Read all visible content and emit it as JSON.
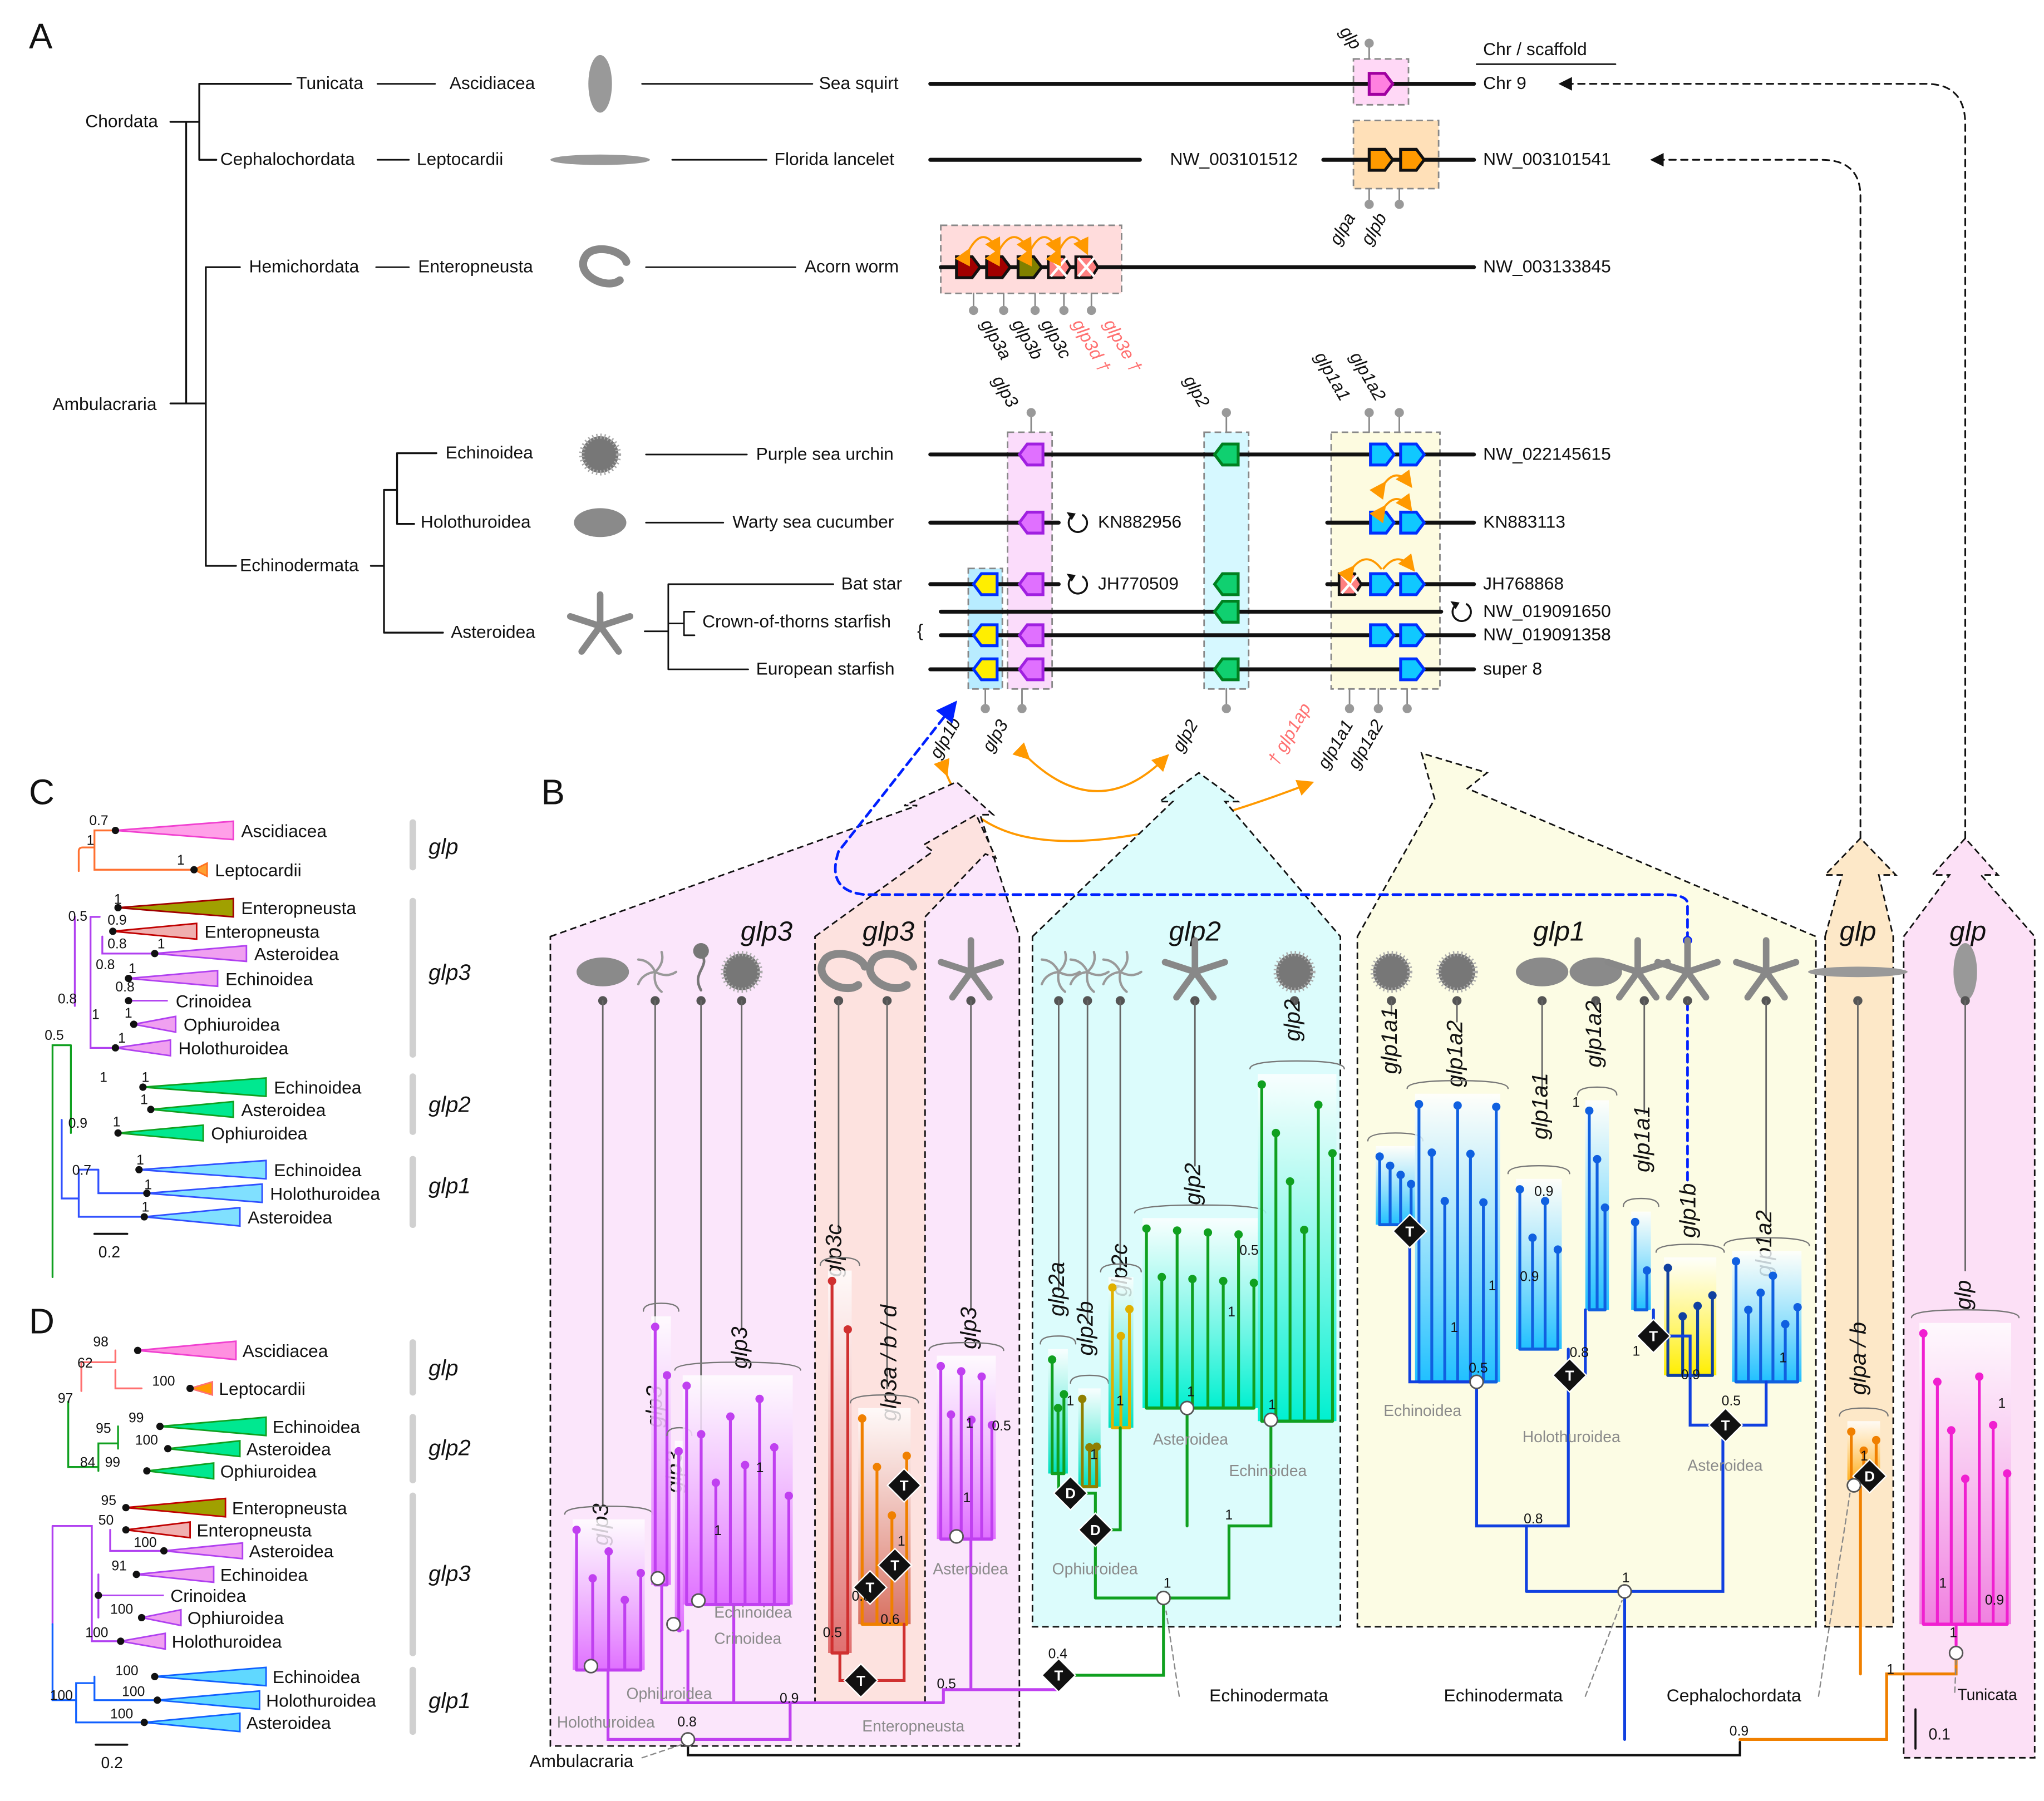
{
  "panel_labels": {
    "a": "A",
    "b": "B",
    "c": "C",
    "d": "D"
  },
  "colors": {
    "glp": "#ff60e0",
    "glp_lancelet": "#ff8c00",
    "glp3": "#c040f0",
    "glp3_worm": "#d02020",
    "glp2": "#00c060",
    "glp1": "#00b0ff",
    "glp1b": "#ffee00",
    "duplication_arrow": "#ff9900",
    "translocation": "#0020ff"
  },
  "panel_a": {
    "header": "Chr / scaffold",
    "taxa": {
      "chordata": "Chordata",
      "tunicata": "Tunicata",
      "ascidiacea": "Ascidiacea",
      "cephalochordata": "Cephalochordata",
      "leptocardii": "Leptocardii",
      "ambulacraria": "Ambulacraria",
      "hemichordata": "Hemichordata",
      "enteropneusta": "Enteropneusta",
      "echinodermata": "Echinodermata",
      "echinoidea": "Echinoidea",
      "holothuroidea": "Holothuroidea",
      "asteroidea": "Asteroidea"
    },
    "species": {
      "sea_squirt": "Sea squirt",
      "florida_lancelet": "Florida lancelet",
      "acorn_worm": "Acorn worm",
      "purple_sea_urchin": "Purple sea urchin",
      "warty_sea_cucumber": "Warty sea cucumber",
      "bat_star": "Bat star",
      "crown_of_thorns": "Crown-of-thorns starfish",
      "european_starfish": "European starfish"
    },
    "scaffolds": {
      "chr9": "Chr 9",
      "nw_003101512": "NW_003101512",
      "nw_003101541": "NW_003101541",
      "nw_003133845": "NW_003133845",
      "nw_022145615": "NW_022145615",
      "kn882956": "KN882956",
      "kn883113": "KN883113",
      "jh770509": "JH770509",
      "jh768868": "JH768868",
      "nw_019091650": "NW_019091650",
      "nw_019091358": "NW_019091358",
      "super8": "super 8"
    },
    "genes": {
      "glp": "glp",
      "glpa": "glpa",
      "glpb": "glpb",
      "glp3a": "glp3a",
      "glp3b": "glp3b",
      "glp3c": "glp3c",
      "glp3d": "glp3d †",
      "glp3e": "glp3e †",
      "glp3_top": "glp3",
      "glp2_top": "glp2",
      "glp1a1_top": "glp1a1",
      "glp1a2_top": "glp1a2",
      "glp1b_bottom": "glp1b",
      "glp3_bottom": "glp3",
      "glp2_bottom": "glp2",
      "glp1ap_bottom": "† glp1ap",
      "glp1a1_bottom": "glp1a1",
      "glp1a2_bottom": "glp1a2"
    }
  },
  "panel_b": {
    "headers": [
      "glp3",
      "glp3",
      "glp2",
      "glp1",
      "glp",
      "glp"
    ],
    "subgroups": [
      "glp3",
      "glp3",
      "glp3",
      "glp3",
      "glp3c",
      "glp3a / b / d",
      "glp3",
      "glp2a",
      "glp2b",
      "glp2c",
      "glp2",
      "glp2",
      "glp1a1",
      "glp1a2",
      "glp1a1",
      "glp1a2",
      "glp1a1",
      "glp1b",
      "glp1a2",
      "glpa / b",
      "glp"
    ],
    "clade_labels": [
      "Holothuroidea",
      "Ophiuroidea",
      "Echinoidea",
      "Crinoidea",
      "Enteropneusta",
      "Asteroidea",
      "Ophiuroidea",
      "Asteroidea",
      "Echinoidea",
      "Echinoidea",
      "Holothuroidea",
      "Asteroidea"
    ],
    "root_labels": {
      "ambulacraria": "Ambulacraria",
      "echinodermata_1": "Echinodermata",
      "echinodermata_2": "Echinodermata",
      "cephalochordata": "Cephalochordata",
      "tunicata": "Tunicata"
    },
    "support": [
      "0.8",
      "0.9",
      "0.5",
      "0.4",
      "1",
      "1",
      "0.8",
      "1",
      "0.9",
      "1",
      "1",
      "1",
      "1",
      "0.8",
      "0.5",
      "0.6",
      "1",
      "1",
      "1",
      "0.5",
      "1",
      "1",
      "1",
      "0.5",
      "1",
      "1",
      "1",
      "0.5",
      "1",
      "1",
      "0.9",
      "0.8",
      "0.9",
      "1",
      "1",
      "0.9",
      "1",
      "0.5",
      "1",
      "0.9",
      "1",
      "1"
    ],
    "event_markers": {
      "translocation": "T",
      "duplication": "D"
    },
    "scale": "0.1"
  },
  "panel_c": {
    "clades": [
      "Ascidiacea",
      "Leptocardii",
      "Enteropneusta",
      "Enteropneusta",
      "Asteroidea",
      "Echinoidea",
      "Crinoidea",
      "Ophiuroidea",
      "Holothuroidea",
      "Echinoidea",
      "Asteroidea",
      "Ophiuroidea",
      "Echinoidea",
      "Holothuroidea",
      "Asteroidea"
    ],
    "groups": [
      "glp",
      "glp3",
      "glp2",
      "glp1"
    ],
    "support": [
      "0.7",
      "1",
      "1",
      "0.5",
      "1",
      "0.9",
      "0.8",
      "1",
      "0.8",
      "1",
      "0.8",
      "1",
      "1",
      "1",
      "0.8",
      "0.5",
      "1",
      "1",
      "1",
      "0.9",
      "1",
      "0.7",
      "1",
      "1",
      "1"
    ],
    "scale": "0.2"
  },
  "panel_d": {
    "clades": [
      "Ascidiacea",
      "Leptocardii",
      "Echinoidea",
      "Asteroidea",
      "Ophiuroidea",
      "Enteropneusta",
      "Enteropneusta",
      "Asteroidea",
      "Echinoidea",
      "Crinoidea",
      "Ophiuroidea",
      "Holothuroidea",
      "Echinoidea",
      "Holothuroidea",
      "Asteroidea"
    ],
    "groups": [
      "glp",
      "glp2",
      "glp3",
      "glp1"
    ],
    "support": [
      "98",
      "62",
      "100",
      "97",
      "99",
      "95",
      "100",
      "84",
      "99",
      "95",
      "50",
      "100",
      "91",
      "100",
      "100",
      "100",
      "100",
      "100",
      "100"
    ],
    "scale": "0.2"
  }
}
